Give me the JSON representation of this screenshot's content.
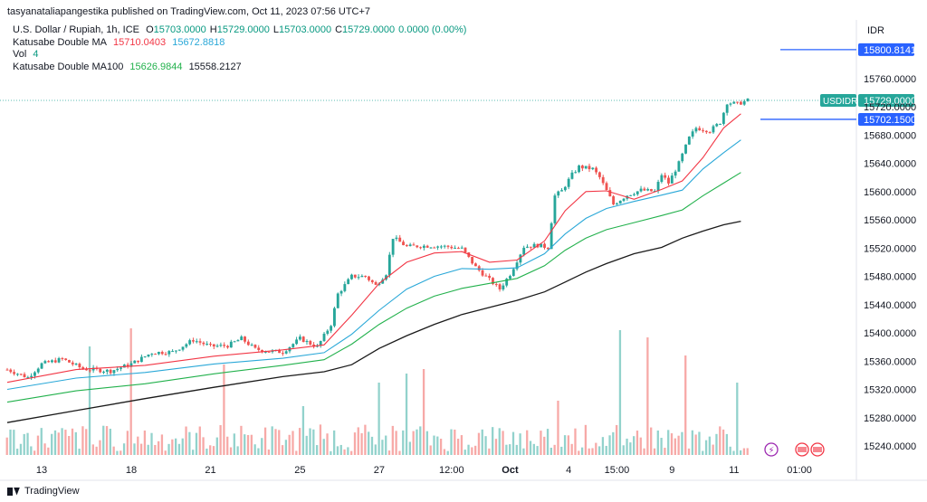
{
  "header": {
    "publisher_text": "tasyanataliapangestika published on TradingView.com, Oct 11, 2023 07:56 UTC+7"
  },
  "legend": {
    "symbol": "U.S. Dollar / Rupiah, 1h, ICE",
    "ohlc": {
      "o_label": "O",
      "o": "15703.0000",
      "h_label": "H",
      "h": "15729.0000",
      "l_label": "L",
      "l": "15703.0000",
      "c_label": "C",
      "c": "15729.0000",
      "change": "0.0000 (0.00%)"
    },
    "ma1_name": "Katusabe Double MA",
    "ma1_v1": "15710.0403",
    "ma1_v2": "15672.8818",
    "vol_name": "Vol",
    "vol_value": "4",
    "ma2_name": "Katusabe Double MA100",
    "ma2_v1": "15626.9844",
    "ma2_v2": "15558.2127"
  },
  "footer": {
    "brand": "TradingView"
  },
  "chart_data": {
    "type": "line",
    "currency": "IDR",
    "y_ticks": [
      15240,
      15280,
      15320,
      15360,
      15400,
      15440,
      15480,
      15520,
      15560,
      15600,
      15640,
      15680,
      15720,
      15760
    ],
    "y_tick_labels": [
      "15240.0000",
      "15280.0000",
      "15320.0000",
      "15360.0000",
      "15400.0000",
      "15440.0000",
      "15480.0000",
      "15520.0000",
      "15560.0000",
      "15600.0000",
      "15640.0000",
      "15680.0000",
      "15720.0000",
      "15760.0000"
    ],
    "ylim": [
      15210,
      15800
    ],
    "x_tick_labels": [
      "13",
      "18",
      "21",
      "25",
      "27",
      "12:00",
      "Oct",
      "4",
      "15:00",
      "9",
      "11",
      "01:00"
    ],
    "x_tick_index": [
      10,
      36,
      59,
      85,
      108,
      129,
      146,
      163,
      177,
      193,
      211,
      227
    ],
    "x_bold_label": "Oct",
    "price_label": {
      "symbol": "USDIDR",
      "value": "15729.0000",
      "price": 15729
    },
    "horizontal_lines": [
      {
        "label": "15800.8141",
        "value": 15800.8141
      },
      {
        "label": "15702.1500",
        "value": 15702.15
      }
    ],
    "price_series": [
      [
        0,
        15348
      ],
      [
        6,
        15337
      ],
      [
        10,
        15356
      ],
      [
        16,
        15363
      ],
      [
        22,
        15349
      ],
      [
        30,
        15346
      ],
      [
        36,
        15356
      ],
      [
        42,
        15372
      ],
      [
        48,
        15373
      ],
      [
        54,
        15390
      ],
      [
        59,
        15381
      ],
      [
        64,
        15382
      ],
      [
        68,
        15392
      ],
      [
        72,
        15377
      ],
      [
        76,
        15374
      ],
      [
        80,
        15373
      ],
      [
        85,
        15392
      ],
      [
        90,
        15380
      ],
      [
        94,
        15412
      ],
      [
        96,
        15455
      ],
      [
        100,
        15480
      ],
      [
        104,
        15480
      ],
      [
        107,
        15467
      ],
      [
        110,
        15484
      ],
      [
        112,
        15535
      ],
      [
        116,
        15522
      ],
      [
        120,
        15523
      ],
      [
        124,
        15523
      ],
      [
        128,
        15522
      ],
      [
        132,
        15519
      ],
      [
        136,
        15493
      ],
      [
        140,
        15475
      ],
      [
        143,
        15462
      ],
      [
        146,
        15483
      ],
      [
        150,
        15522
      ],
      [
        154,
        15524
      ],
      [
        157,
        15521
      ],
      [
        159,
        15594
      ],
      [
        161,
        15601
      ],
      [
        164,
        15624
      ],
      [
        166,
        15635
      ],
      [
        170,
        15632
      ],
      [
        172,
        15620
      ],
      [
        176,
        15582
      ],
      [
        180,
        15595
      ],
      [
        184,
        15602
      ],
      [
        188,
        15600
      ],
      [
        190,
        15624
      ],
      [
        192,
        15612
      ],
      [
        195,
        15640
      ],
      [
        198,
        15676
      ],
      [
        200,
        15690
      ],
      [
        204,
        15686
      ],
      [
        207,
        15698
      ],
      [
        209,
        15726
      ],
      [
        212,
        15724
      ],
      [
        215,
        15729
      ]
    ],
    "series": [
      {
        "color": "#f23645",
        "values": [
          [
            0,
            15330
          ],
          [
            20,
            15348
          ],
          [
            40,
            15354
          ],
          [
            60,
            15367
          ],
          [
            80,
            15376
          ],
          [
            92,
            15383
          ],
          [
            100,
            15425
          ],
          [
            108,
            15470
          ],
          [
            116,
            15500
          ],
          [
            124,
            15513
          ],
          [
            132,
            15515
          ],
          [
            140,
            15500
          ],
          [
            148,
            15503
          ],
          [
            156,
            15530
          ],
          [
            162,
            15573
          ],
          [
            168,
            15600
          ],
          [
            174,
            15601
          ],
          [
            182,
            15589
          ],
          [
            190,
            15603
          ],
          [
            196,
            15615
          ],
          [
            202,
            15648
          ],
          [
            208,
            15690
          ],
          [
            213,
            15710
          ]
        ]
      },
      {
        "color": "#2aa8d8",
        "values": [
          [
            0,
            15320
          ],
          [
            20,
            15336
          ],
          [
            40,
            15344
          ],
          [
            60,
            15356
          ],
          [
            80,
            15364
          ],
          [
            92,
            15372
          ],
          [
            100,
            15398
          ],
          [
            108,
            15432
          ],
          [
            116,
            15462
          ],
          [
            124,
            15480
          ],
          [
            132,
            15491
          ],
          [
            140,
            15490
          ],
          [
            148,
            15492
          ],
          [
            156,
            15512
          ],
          [
            162,
            15540
          ],
          [
            168,
            15562
          ],
          [
            174,
            15576
          ],
          [
            182,
            15586
          ],
          [
            190,
            15595
          ],
          [
            196,
            15602
          ],
          [
            202,
            15632
          ],
          [
            208,
            15655
          ],
          [
            213,
            15673
          ]
        ]
      },
      {
        "color": "#22b14c",
        "values": [
          [
            0,
            15302
          ],
          [
            20,
            15318
          ],
          [
            40,
            15328
          ],
          [
            60,
            15342
          ],
          [
            80,
            15354
          ],
          [
            92,
            15362
          ],
          [
            100,
            15384
          ],
          [
            108,
            15412
          ],
          [
            116,
            15435
          ],
          [
            124,
            15452
          ],
          [
            132,
            15463
          ],
          [
            140,
            15470
          ],
          [
            148,
            15477
          ],
          [
            156,
            15495
          ],
          [
            162,
            15517
          ],
          [
            168,
            15534
          ],
          [
            174,
            15546
          ],
          [
            182,
            15556
          ],
          [
            190,
            15566
          ],
          [
            196,
            15574
          ],
          [
            202,
            15594
          ],
          [
            208,
            15612
          ],
          [
            213,
            15627
          ]
        ]
      },
      {
        "color": "#1a1a1a",
        "values": [
          [
            0,
            15273
          ],
          [
            20,
            15290
          ],
          [
            40,
            15307
          ],
          [
            60,
            15323
          ],
          [
            80,
            15338
          ],
          [
            92,
            15345
          ],
          [
            100,
            15355
          ],
          [
            108,
            15378
          ],
          [
            116,
            15396
          ],
          [
            124,
            15412
          ],
          [
            132,
            15426
          ],
          [
            140,
            15436
          ],
          [
            148,
            15446
          ],
          [
            156,
            15458
          ],
          [
            162,
            15472
          ],
          [
            168,
            15486
          ],
          [
            174,
            15498
          ],
          [
            182,
            15512
          ],
          [
            190,
            15521
          ],
          [
            196,
            15534
          ],
          [
            202,
            15544
          ],
          [
            208,
            15553
          ],
          [
            213,
            15558
          ]
        ]
      }
    ]
  }
}
